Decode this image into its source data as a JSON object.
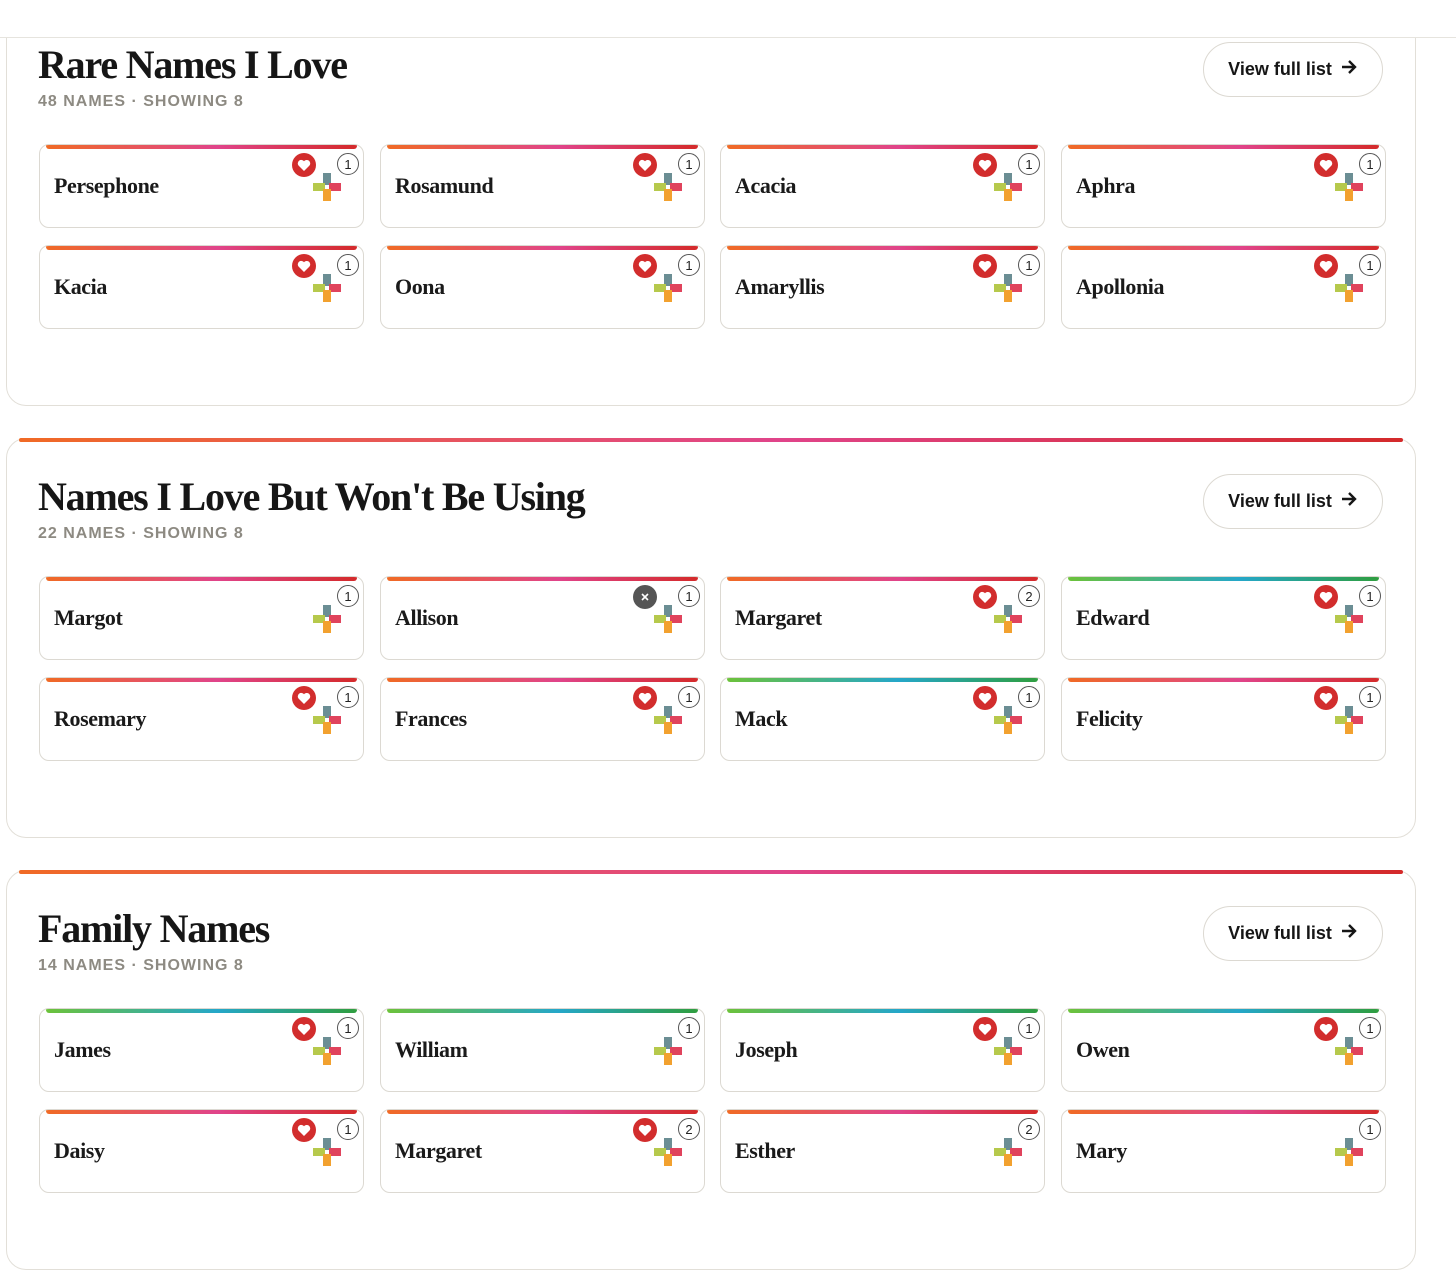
{
  "sections": [
    {
      "title": "Rare Names I Love",
      "meta": "48 NAMES · SHOWING 8",
      "button": "View full list",
      "cards": [
        {
          "name": "Persephone",
          "count": 1,
          "badge": "heart",
          "stripe": "warm"
        },
        {
          "name": "Rosamund",
          "count": 1,
          "badge": "heart",
          "stripe": "warm"
        },
        {
          "name": "Acacia",
          "count": 1,
          "badge": "heart",
          "stripe": "warm"
        },
        {
          "name": "Aphra",
          "count": 1,
          "badge": "heart",
          "stripe": "warm"
        },
        {
          "name": "Kacia",
          "count": 1,
          "badge": "heart",
          "stripe": "warm"
        },
        {
          "name": "Oona",
          "count": 1,
          "badge": "heart",
          "stripe": "warm"
        },
        {
          "name": "Amaryllis",
          "count": 1,
          "badge": "heart",
          "stripe": "warm"
        },
        {
          "name": "Apollonia",
          "count": 1,
          "badge": "heart",
          "stripe": "warm"
        }
      ]
    },
    {
      "title": "Names I Love But Won't Be Using",
      "meta": "22 NAMES · SHOWING 8",
      "button": "View full list",
      "cards": [
        {
          "name": "Margot",
          "count": 1,
          "badge": "none",
          "stripe": "warm"
        },
        {
          "name": "Allison",
          "count": 1,
          "badge": "x",
          "stripe": "warm"
        },
        {
          "name": "Margaret",
          "count": 2,
          "badge": "heart",
          "stripe": "warm"
        },
        {
          "name": "Edward",
          "count": 1,
          "badge": "heart",
          "stripe": "cool"
        },
        {
          "name": "Rosemary",
          "count": 1,
          "badge": "heart",
          "stripe": "warm"
        },
        {
          "name": "Frances",
          "count": 1,
          "badge": "heart",
          "stripe": "warm"
        },
        {
          "name": "Mack",
          "count": 1,
          "badge": "heart",
          "stripe": "cool"
        },
        {
          "name": "Felicity",
          "count": 1,
          "badge": "heart",
          "stripe": "warm"
        }
      ]
    },
    {
      "title": "Family Names",
      "meta": "14 NAMES · SHOWING 8",
      "button": "View full list",
      "cards": [
        {
          "name": "James",
          "count": 1,
          "badge": "heart",
          "stripe": "cool"
        },
        {
          "name": "William",
          "count": 1,
          "badge": "none",
          "stripe": "cool"
        },
        {
          "name": "Joseph",
          "count": 1,
          "badge": "heart",
          "stripe": "cool"
        },
        {
          "name": "Owen",
          "count": 1,
          "badge": "heart",
          "stripe": "cool"
        },
        {
          "name": "Daisy",
          "count": 1,
          "badge": "heart",
          "stripe": "warm"
        },
        {
          "name": "Margaret",
          "count": 2,
          "badge": "heart",
          "stripe": "warm"
        },
        {
          "name": "Esther",
          "count": 2,
          "badge": "none",
          "stripe": "warm"
        },
        {
          "name": "Mary",
          "count": 1,
          "badge": "none",
          "stripe": "warm"
        }
      ]
    }
  ]
}
